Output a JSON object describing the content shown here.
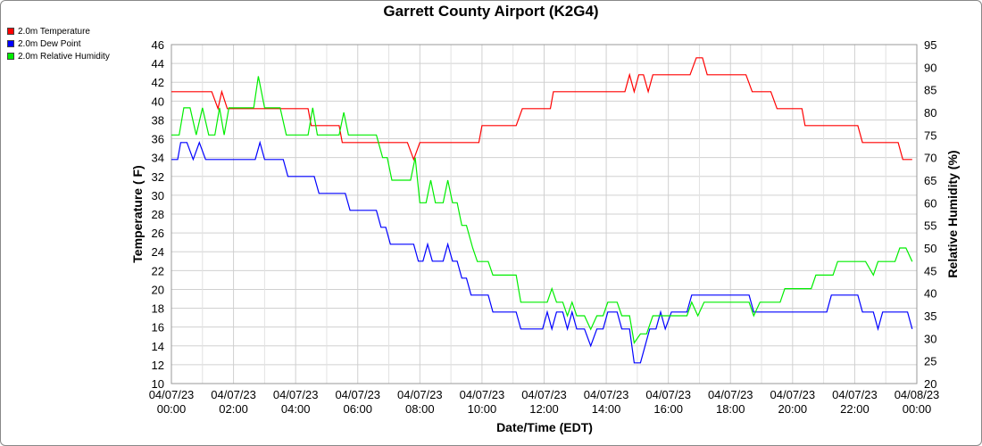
{
  "chart_data": {
    "type": "line",
    "title": "Garrett County Airport (K2G4)",
    "xlabel": "Date/Time (EDT)",
    "ylabel_left": "Temperature ( F)",
    "ylabel_right": "Relative Humidity (%)",
    "ylim_left": [
      10,
      46
    ],
    "ylim_right": [
      20,
      95
    ],
    "xlim": [
      0,
      24
    ],
    "yticks_left": [
      "10",
      "12",
      "14",
      "16",
      "18",
      "20",
      "22",
      "24",
      "26",
      "28",
      "30",
      "32",
      "34",
      "36",
      "38",
      "40",
      "42",
      "44",
      "46"
    ],
    "yticks_right": [
      "20",
      "25",
      "30",
      "35",
      "40",
      "45",
      "50",
      "55",
      "60",
      "65",
      "70",
      "75",
      "80",
      "85",
      "90",
      "95"
    ],
    "xticks": [
      {
        "date": "04/07/23",
        "time": "00:00"
      },
      {
        "date": "04/07/23",
        "time": "02:00"
      },
      {
        "date": "04/07/23",
        "time": "04:00"
      },
      {
        "date": "04/07/23",
        "time": "06:00"
      },
      {
        "date": "04/07/23",
        "time": "08:00"
      },
      {
        "date": "04/07/23",
        "time": "10:00"
      },
      {
        "date": "04/07/23",
        "time": "12:00"
      },
      {
        "date": "04/07/23",
        "time": "14:00"
      },
      {
        "date": "04/07/23",
        "time": "16:00"
      },
      {
        "date": "04/07/23",
        "time": "18:00"
      },
      {
        "date": "04/07/23",
        "time": "20:00"
      },
      {
        "date": "04/07/23",
        "time": "22:00"
      },
      {
        "date": "04/08/23",
        "time": "00:00"
      }
    ],
    "grid": true,
    "legend_position": "top-left",
    "series": [
      {
        "name": "2.0m Temperature",
        "color": "#ff0000",
        "axis": "left",
        "points": [
          [
            0,
            41
          ],
          [
            1.3,
            41
          ],
          [
            1.5,
            39.2
          ],
          [
            1.62,
            41
          ],
          [
            1.8,
            39.2
          ],
          [
            4.4,
            39.2
          ],
          [
            4.5,
            37.4
          ],
          [
            5.4,
            37.4
          ],
          [
            5.5,
            35.6
          ],
          [
            7.6,
            35.6
          ],
          [
            7.8,
            33.8
          ],
          [
            8,
            35.6
          ],
          [
            9.9,
            35.6
          ],
          [
            10,
            37.4
          ],
          [
            11.1,
            37.4
          ],
          [
            11.3,
            39.2
          ],
          [
            12.2,
            39.2
          ],
          [
            12.3,
            41
          ],
          [
            14.6,
            41
          ],
          [
            14.75,
            42.8
          ],
          [
            14.9,
            41
          ],
          [
            15.05,
            42.8
          ],
          [
            15.2,
            42.8
          ],
          [
            15.35,
            41
          ],
          [
            15.5,
            42.8
          ],
          [
            16.7,
            42.8
          ],
          [
            16.9,
            44.6
          ],
          [
            17.1,
            44.6
          ],
          [
            17.25,
            42.8
          ],
          [
            18.5,
            42.8
          ],
          [
            18.7,
            41
          ],
          [
            19.3,
            41
          ],
          [
            19.5,
            39.2
          ],
          [
            20.3,
            39.2
          ],
          [
            20.4,
            37.4
          ],
          [
            22.1,
            37.4
          ],
          [
            22.25,
            35.6
          ],
          [
            23.4,
            35.6
          ],
          [
            23.55,
            33.8
          ],
          [
            23.85,
            33.8
          ]
        ]
      },
      {
        "name": "2.0m Dew Point",
        "color": "#0000ff",
        "axis": "left",
        "points": [
          [
            0,
            33.8
          ],
          [
            0.2,
            33.8
          ],
          [
            0.3,
            35.6
          ],
          [
            0.5,
            35.6
          ],
          [
            0.7,
            33.8
          ],
          [
            0.9,
            35.6
          ],
          [
            1.1,
            33.8
          ],
          [
            2.7,
            33.8
          ],
          [
            2.85,
            35.6
          ],
          [
            3,
            33.8
          ],
          [
            3.6,
            33.8
          ],
          [
            3.75,
            32
          ],
          [
            4.6,
            32
          ],
          [
            4.75,
            30.2
          ],
          [
            5.6,
            30.2
          ],
          [
            5.75,
            28.4
          ],
          [
            6.6,
            28.4
          ],
          [
            6.75,
            26.6
          ],
          [
            6.9,
            26.6
          ],
          [
            7.05,
            24.8
          ],
          [
            7.8,
            24.8
          ],
          [
            7.95,
            23
          ],
          [
            8.1,
            23
          ],
          [
            8.25,
            24.8
          ],
          [
            8.4,
            23
          ],
          [
            8.75,
            23
          ],
          [
            8.9,
            24.8
          ],
          [
            9.05,
            23
          ],
          [
            9.2,
            23
          ],
          [
            9.35,
            21.2
          ],
          [
            9.5,
            21.2
          ],
          [
            9.65,
            19.4
          ],
          [
            10.2,
            19.4
          ],
          [
            10.35,
            17.6
          ],
          [
            11.1,
            17.6
          ],
          [
            11.25,
            15.8
          ],
          [
            11.95,
            15.8
          ],
          [
            12.1,
            17.6
          ],
          [
            12.25,
            15.8
          ],
          [
            12.4,
            17.6
          ],
          [
            12.6,
            17.6
          ],
          [
            12.75,
            15.8
          ],
          [
            12.9,
            17.6
          ],
          [
            13.05,
            15.8
          ],
          [
            13.3,
            15.8
          ],
          [
            13.5,
            14
          ],
          [
            13.7,
            15.8
          ],
          [
            13.9,
            15.8
          ],
          [
            14.05,
            17.6
          ],
          [
            14.35,
            17.6
          ],
          [
            14.5,
            15.8
          ],
          [
            14.75,
            15.8
          ],
          [
            14.9,
            12.2
          ],
          [
            15.1,
            12.2
          ],
          [
            15.4,
            15.8
          ],
          [
            15.6,
            15.8
          ],
          [
            15.75,
            17.6
          ],
          [
            15.9,
            15.8
          ],
          [
            16.1,
            17.6
          ],
          [
            16.6,
            17.6
          ],
          [
            16.75,
            19.4
          ],
          [
            18.6,
            19.4
          ],
          [
            18.75,
            17.6
          ],
          [
            21.1,
            17.6
          ],
          [
            21.25,
            19.4
          ],
          [
            22.1,
            19.4
          ],
          [
            22.25,
            17.6
          ],
          [
            22.6,
            17.6
          ],
          [
            22.75,
            15.8
          ],
          [
            22.9,
            17.6
          ],
          [
            23.7,
            17.6
          ],
          [
            23.85,
            15.8
          ]
        ]
      },
      {
        "name": "2.0m Relative Humidity",
        "color": "#00ee00",
        "axis": "right",
        "points": [
          [
            0,
            75
          ],
          [
            0.25,
            75
          ],
          [
            0.4,
            81
          ],
          [
            0.6,
            81
          ],
          [
            0.8,
            75
          ],
          [
            1,
            81
          ],
          [
            1.2,
            75
          ],
          [
            1.4,
            75
          ],
          [
            1.55,
            81
          ],
          [
            1.7,
            75
          ],
          [
            1.85,
            81
          ],
          [
            2.1,
            81
          ],
          [
            2.3,
            81
          ],
          [
            2.5,
            81
          ],
          [
            2.65,
            81
          ],
          [
            2.8,
            88
          ],
          [
            3,
            81
          ],
          [
            3.5,
            81
          ],
          [
            3.7,
            75
          ],
          [
            4.4,
            75
          ],
          [
            4.55,
            81
          ],
          [
            4.7,
            75
          ],
          [
            5.4,
            75
          ],
          [
            5.55,
            80
          ],
          [
            5.7,
            75
          ],
          [
            6.6,
            75
          ],
          [
            6.8,
            70
          ],
          [
            6.95,
            70
          ],
          [
            7.1,
            65
          ],
          [
            7.7,
            65
          ],
          [
            7.85,
            70
          ],
          [
            8,
            60
          ],
          [
            8.2,
            60
          ],
          [
            8.35,
            65
          ],
          [
            8.5,
            60
          ],
          [
            8.75,
            60
          ],
          [
            8.9,
            65
          ],
          [
            9.05,
            60
          ],
          [
            9.2,
            60
          ],
          [
            9.35,
            55
          ],
          [
            9.5,
            55
          ],
          [
            9.7,
            50
          ],
          [
            9.85,
            47
          ],
          [
            10.2,
            47
          ],
          [
            10.35,
            44
          ],
          [
            11.1,
            44
          ],
          [
            11.25,
            38
          ],
          [
            12.1,
            38
          ],
          [
            12.25,
            41
          ],
          [
            12.4,
            38
          ],
          [
            12.6,
            38
          ],
          [
            12.75,
            35
          ],
          [
            12.9,
            38
          ],
          [
            13.05,
            35
          ],
          [
            13.3,
            35
          ],
          [
            13.5,
            32
          ],
          [
            13.7,
            35
          ],
          [
            13.9,
            35
          ],
          [
            14.05,
            38
          ],
          [
            14.35,
            38
          ],
          [
            14.5,
            35
          ],
          [
            14.75,
            35
          ],
          [
            14.9,
            29
          ],
          [
            15.1,
            31
          ],
          [
            15.3,
            31
          ],
          [
            15.5,
            35
          ],
          [
            15.7,
            35
          ],
          [
            16.1,
            35
          ],
          [
            16.6,
            35
          ],
          [
            16.75,
            38
          ],
          [
            16.95,
            35
          ],
          [
            17.15,
            38
          ],
          [
            18.6,
            38
          ],
          [
            18.75,
            35
          ],
          [
            18.95,
            38
          ],
          [
            19.6,
            38
          ],
          [
            19.75,
            41
          ],
          [
            20.6,
            41
          ],
          [
            20.75,
            44
          ],
          [
            21.3,
            44
          ],
          [
            21.45,
            47
          ],
          [
            22.2,
            47
          ],
          [
            22.35,
            47
          ],
          [
            22.6,
            44
          ],
          [
            22.75,
            47
          ],
          [
            23.3,
            47
          ],
          [
            23.45,
            50
          ],
          [
            23.65,
            50
          ],
          [
            23.85,
            47
          ]
        ]
      }
    ]
  }
}
